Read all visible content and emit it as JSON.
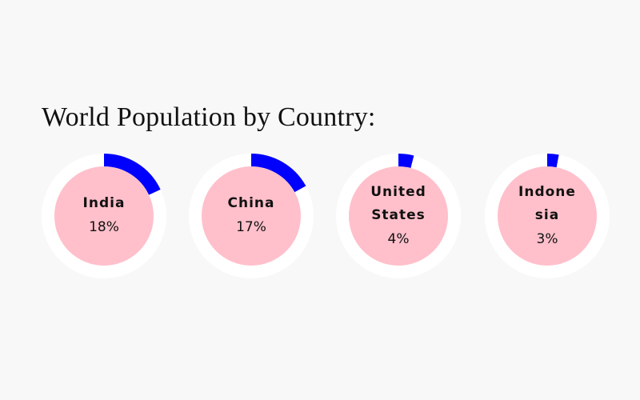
{
  "title": "World Population by Country:",
  "items": [
    {
      "name": "India",
      "value": 18,
      "value_label": "18%"
    },
    {
      "name": "China",
      "value": 17,
      "value_label": "17%"
    },
    {
      "name": "United States",
      "value": 4,
      "value_label": "4%"
    },
    {
      "name": "Indonesia",
      "value": 3,
      "value_label": "3%"
    }
  ],
  "track_color": "#ffffff",
  "fill_color": "#0000ff",
  "inner_color": "#ffc0cb"
}
